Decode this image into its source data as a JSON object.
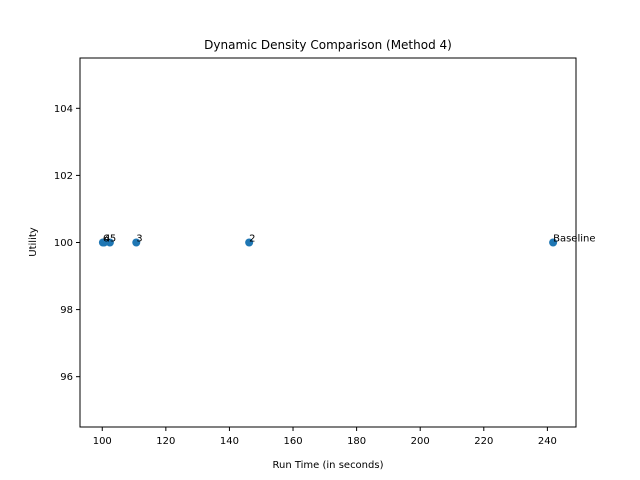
{
  "chart_data": {
    "type": "scatter",
    "title": "Dynamic Density Comparison (Method 4)",
    "xlabel": "Run Time (in seconds)",
    "ylabel": "Utility",
    "xlim": [
      93,
      249
    ],
    "ylim": [
      94.5,
      105.5
    ],
    "xticks": [
      100,
      120,
      140,
      160,
      180,
      200,
      220,
      240
    ],
    "yticks": [
      96,
      98,
      100,
      102,
      104
    ],
    "grid": false,
    "marker_color": "#1f77b4",
    "points": [
      {
        "label": "Baseline",
        "x": 241.8,
        "y": 100
      },
      {
        "label": "2",
        "x": 146.2,
        "y": 100
      },
      {
        "label": "3",
        "x": 110.7,
        "y": 100
      },
      {
        "label": "5",
        "x": 102.4,
        "y": 100
      },
      {
        "label": "4",
        "x": 100.6,
        "y": 100
      },
      {
        "label": "6",
        "x": 100.2,
        "y": 100
      }
    ]
  }
}
